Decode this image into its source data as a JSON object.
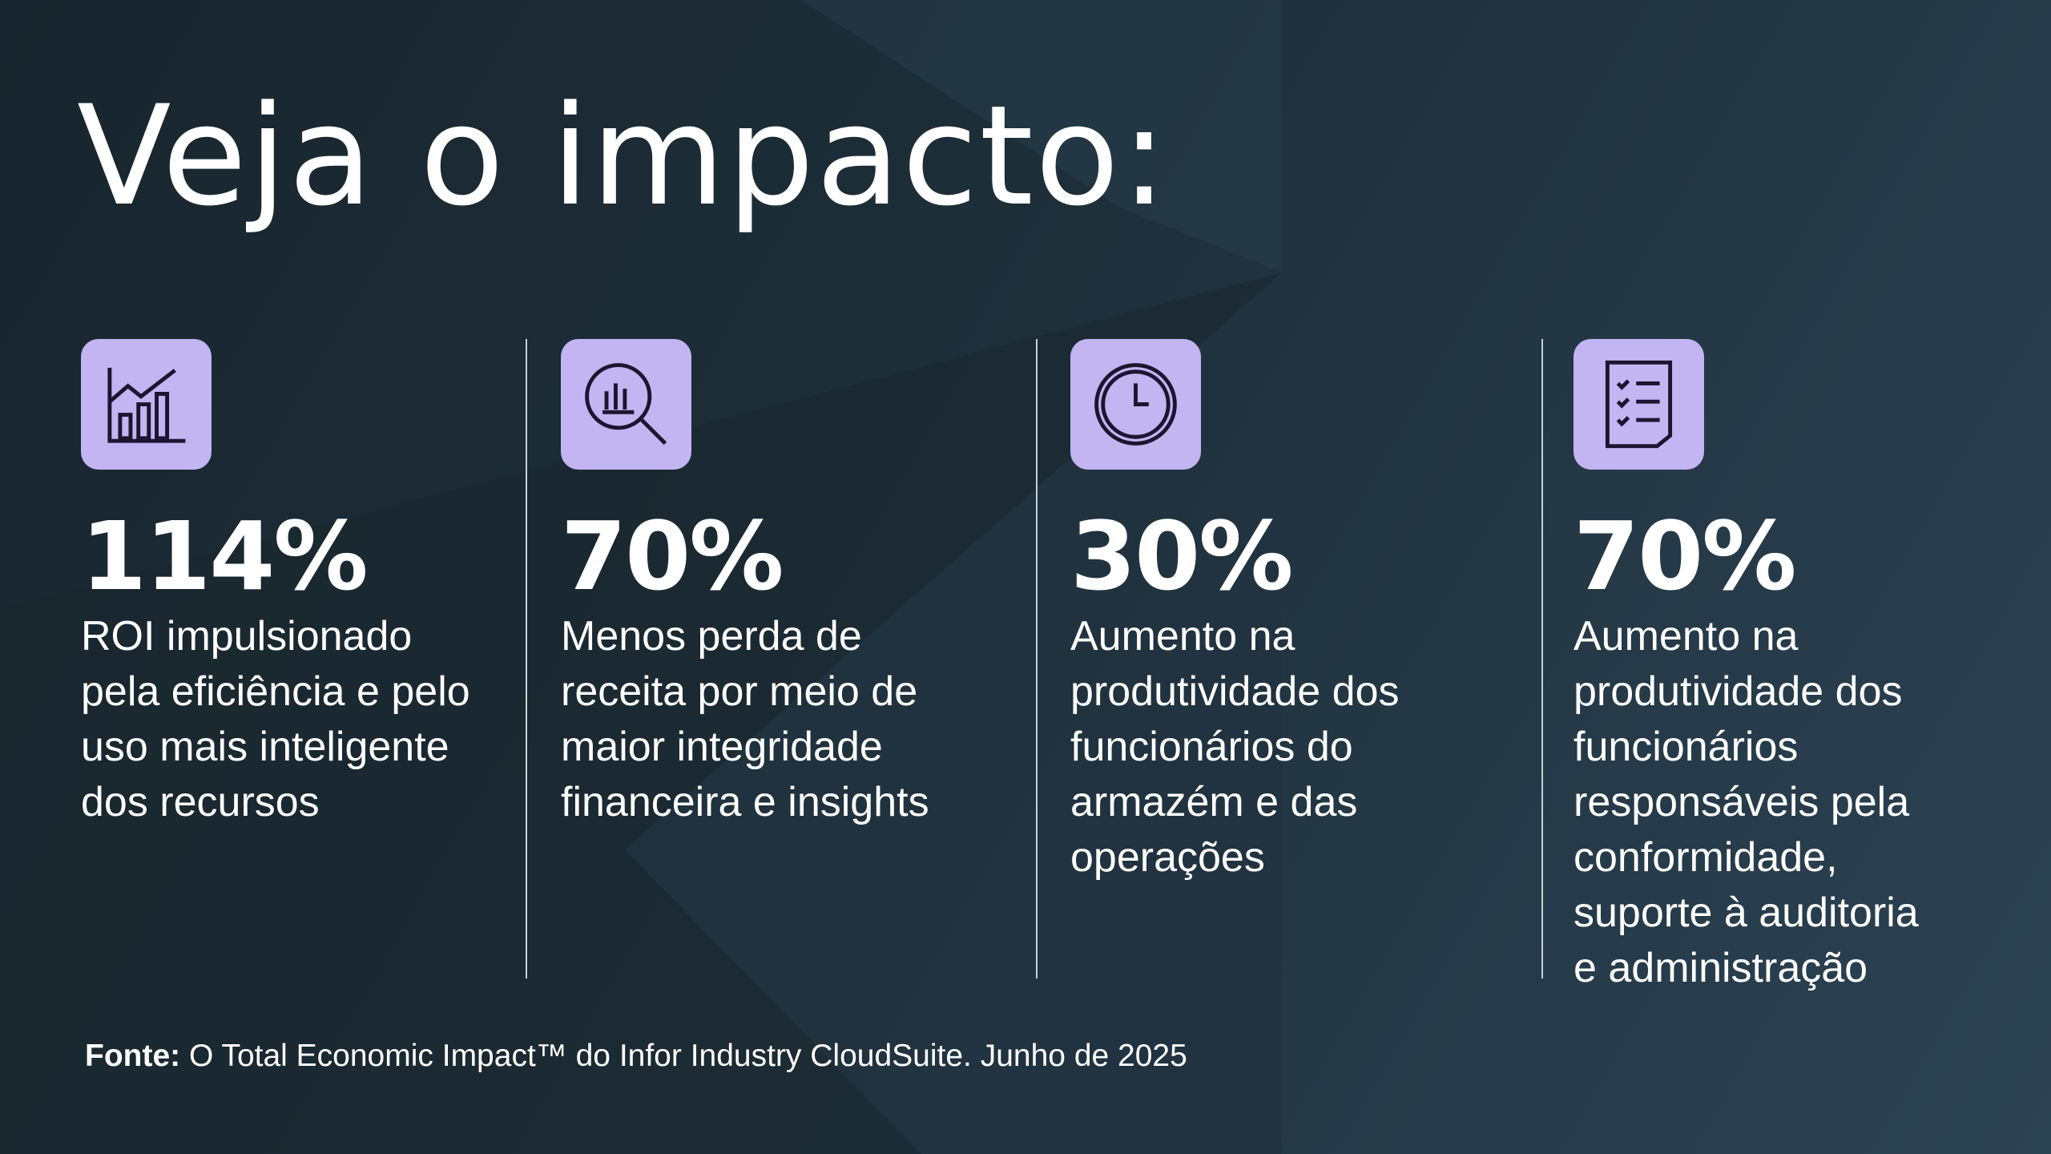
{
  "header": {
    "title": "Veja o impacto:"
  },
  "stats": [
    {
      "value": "114%",
      "description": "ROI impulsionado pela eficiência e pelo uso mais inteligente dos recursos"
    },
    {
      "value": "70%",
      "description": "Menos perda de receita por meio de maior integridade financeira e insights"
    },
    {
      "value": "30%",
      "description": "Aumento na produtividade dos funcionários do armazém e das operações"
    },
    {
      "value": "70%",
      "description": "Aumento na produtividade dos funcionários responsáveis pela conformidade, suporte à auditoria e administração"
    }
  ],
  "footer": {
    "label": "Fonte:",
    "text": "O Total Economic Impact™ do Infor Industry CloudSuite. Junho de 2025"
  }
}
